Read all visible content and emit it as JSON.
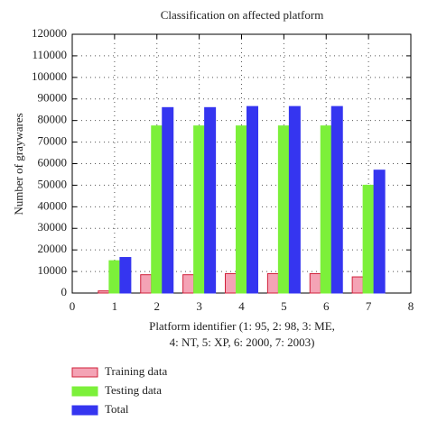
{
  "chart_data": {
    "type": "bar",
    "title": "Classification on affected platform",
    "xlabel": [
      "Platform identifier (1: 95, 2: 98, 3: ME,",
      "4: NT, 5: XP, 6: 2000, 7: 2003)"
    ],
    "ylabel": "Number of graywares",
    "x": [
      1,
      2,
      3,
      4,
      5,
      6,
      7
    ],
    "series": [
      {
        "name": "Training data",
        "color": "#f4a3b5",
        "values": [
          1000,
          8500,
          8500,
          9000,
          9000,
          9000,
          7500
        ]
      },
      {
        "name": "Testing data",
        "color": "#7cf03a",
        "values": [
          15000,
          77500,
          77500,
          77500,
          77500,
          77500,
          50000
        ]
      },
      {
        "name": "Total",
        "color": "#3535f0",
        "values": [
          16500,
          86000,
          86000,
          86500,
          86500,
          86500,
          57000
        ]
      }
    ],
    "xlim": [
      0,
      8
    ],
    "xticks": [
      0,
      1,
      2,
      3,
      4,
      5,
      6,
      7,
      8
    ],
    "ylim": [
      0,
      120000
    ],
    "yticks": [
      0,
      10000,
      20000,
      30000,
      40000,
      50000,
      60000,
      70000,
      80000,
      90000,
      100000,
      110000,
      120000
    ],
    "grid": true
  }
}
